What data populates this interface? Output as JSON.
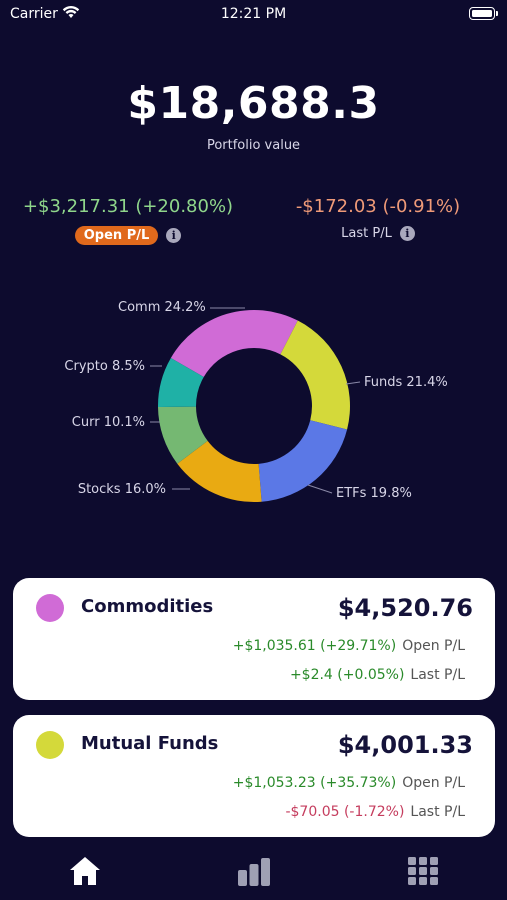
{
  "status_bar": {
    "carrier": "Carrier",
    "time": "12:21 PM"
  },
  "portfolio": {
    "value": "$18,688.3",
    "label": "Portfolio value"
  },
  "open_pl": {
    "value": "+$3,217.31 (+20.80%)",
    "label": "Open P/L"
  },
  "last_pl": {
    "value": "-$172.03 (-0.91%)",
    "label": "Last P/L"
  },
  "chart_data": {
    "type": "pie",
    "categories": [
      "Comm",
      "Funds",
      "ETFs",
      "Stocks",
      "Curr",
      "Crypto"
    ],
    "values": [
      24.2,
      21.4,
      19.8,
      16.0,
      10.1,
      8.5
    ],
    "labels": [
      "Comm 24.2%",
      "Funds 21.4%",
      "ETFs 19.8%",
      "Stocks 16.0%",
      "Curr 10.1%",
      "Crypto 8.5%"
    ],
    "colors": [
      "#d06bd6",
      "#d4d93a",
      "#5b78e6",
      "#e9aa12",
      "#75b872",
      "#1fb1a6"
    ]
  },
  "cards": [
    {
      "name": "Commodities",
      "color": "#d06bd6",
      "total": "$4,520.76",
      "open_value": "+$1,035.61 (+29.71%)",
      "open_label": "Open P/L",
      "last_value": "+$2.4 (+0.05%)",
      "last_label": "Last P/L"
    },
    {
      "name": "Mutual Funds",
      "color": "#d4d93a",
      "total": "$4,001.33",
      "open_value": "+$1,053.23 (+35.73%)",
      "open_label": "Open P/L",
      "last_value": "-$70.05 (-1.72%)",
      "last_label": "Last P/L"
    }
  ],
  "tab_bar": {
    "icons": [
      "home-icon",
      "bar-chart-icon",
      "grid-icon"
    ]
  }
}
